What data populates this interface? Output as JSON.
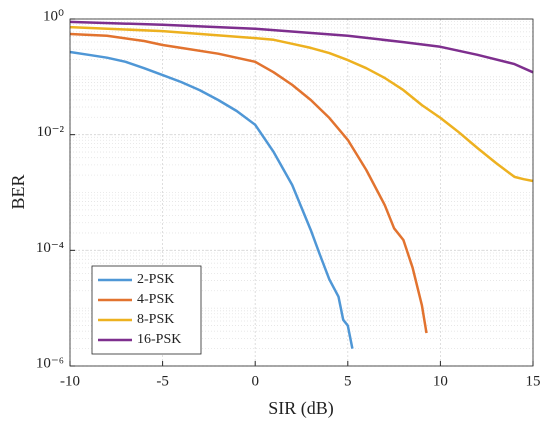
{
  "chart_data": {
    "type": "line",
    "xlabel": "SIR (dB)",
    "ylabel": "BER",
    "xlim": [
      -10,
      15
    ],
    "xticks": [
      -10,
      -5,
      0,
      5,
      10,
      15
    ],
    "ylim": [
      1e-06,
      1
    ],
    "yticks": [
      {
        "value": 1e-06,
        "label": "10⁻⁶"
      },
      {
        "value": 0.0001,
        "label": "10⁻⁴"
      },
      {
        "value": 0.01,
        "label": "10⁻²"
      },
      {
        "value": 1,
        "label": "10⁰"
      }
    ],
    "log_y": true,
    "grid": true,
    "minor_grid": true,
    "legend": "lower left",
    "series": [
      {
        "name": "2-PSK",
        "color": "#4f97d6",
        "x": [
          -10,
          -9,
          -8,
          -7,
          -6,
          -5,
          -4,
          -3,
          -2,
          -1,
          0,
          1,
          2,
          3,
          3.5,
          4,
          4.5,
          4.75,
          5,
          5.25
        ],
        "values": [
          0.269,
          0.24,
          0.214,
          0.182,
          0.141,
          0.107,
          0.0813,
          0.0589,
          0.0398,
          0.0257,
          0.0148,
          0.005,
          0.00135,
          0.000224,
          8.3e-05,
          3.16e-05,
          1.58e-05,
          6.3e-06,
          5e-06,
          2e-06
        ]
      },
      {
        "name": "4-PSK",
        "color": "#e2732f",
        "x": [
          -10,
          -8,
          -6,
          -5,
          -4,
          -2,
          0,
          1,
          2,
          3,
          4,
          5,
          6,
          7,
          7.5,
          8,
          8.5,
          9,
          9.25
        ],
        "values": [
          0.55,
          0.513,
          0.417,
          0.355,
          0.316,
          0.251,
          0.182,
          0.12,
          0.0724,
          0.0398,
          0.0195,
          0.00813,
          0.00245,
          0.000603,
          0.00024,
          0.000151,
          5e-05,
          1.12e-05,
          3.7e-06
        ]
      },
      {
        "name": "8-PSK",
        "color": "#edb120",
        "x": [
          -10,
          -5,
          0,
          1,
          2,
          3,
          4,
          5,
          6,
          7,
          8,
          9,
          10,
          11,
          12,
          13,
          14,
          14.5,
          15
        ],
        "values": [
          0.724,
          0.617,
          0.468,
          0.437,
          0.372,
          0.316,
          0.257,
          0.195,
          0.141,
          0.0955,
          0.0589,
          0.0324,
          0.0195,
          0.011,
          0.00589,
          0.00324,
          0.00186,
          0.0017,
          0.00158
        ]
      },
      {
        "name": "16-PSK",
        "color": "#7e2f8e",
        "x": [
          -10,
          -5,
          0,
          5,
          8,
          10,
          12,
          14,
          15
        ],
        "values": [
          0.891,
          0.794,
          0.676,
          0.513,
          0.398,
          0.331,
          0.24,
          0.166,
          0.12
        ]
      }
    ]
  }
}
